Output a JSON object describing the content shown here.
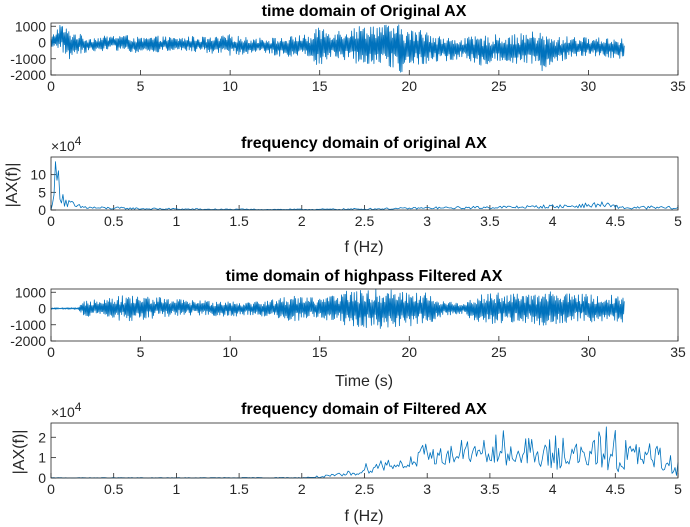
{
  "colors": {
    "line": "#0072BD",
    "axes": "#262626",
    "background": "#ffffff"
  },
  "chart_data": [
    {
      "type": "line",
      "title": "time domain of Original AX",
      "xlabel": "",
      "ylabel": "",
      "xlim": [
        0,
        35
      ],
      "ylim": [
        -2000,
        1200
      ],
      "xticks": [
        0,
        5,
        10,
        15,
        20,
        25,
        30,
        35
      ],
      "xtick_labels": [
        "0",
        "5",
        "10",
        "15",
        "20",
        "25",
        "30",
        "35"
      ],
      "yticks": [
        -2000,
        -1000,
        0,
        1000
      ],
      "ytick_labels": [
        "-2000",
        "-1000",
        "0",
        "1000"
      ],
      "exponent_label": "",
      "envelope": {
        "x": [
          0,
          0.5,
          1,
          1.5,
          2,
          3,
          4,
          5,
          6,
          7,
          8,
          9,
          10,
          11,
          12,
          13,
          14,
          14.5,
          15,
          15.5,
          16,
          17,
          18,
          19,
          19.5,
          20,
          21,
          22,
          23,
          24,
          25,
          26,
          27,
          27.5,
          28,
          29,
          30,
          31,
          32
        ],
        "lo": [
          -500,
          -400,
          -1100,
          -700,
          -600,
          -500,
          -500,
          -700,
          -600,
          -500,
          -600,
          -700,
          -800,
          -700,
          -700,
          -900,
          -800,
          -900,
          -1600,
          -1000,
          -1000,
          -1300,
          -1300,
          -1600,
          -2000,
          -1500,
          -1300,
          -1200,
          -1000,
          -1400,
          -1300,
          -1300,
          -1400,
          -2000,
          -1300,
          -1000,
          -800,
          -900,
          -1100
        ],
        "hi": [
          300,
          1200,
          800,
          600,
          300,
          400,
          500,
          300,
          400,
          300,
          400,
          300,
          500,
          300,
          300,
          300,
          500,
          400,
          1100,
          800,
          800,
          1000,
          1200,
          1100,
          1100,
          800,
          800,
          300,
          300,
          400,
          500,
          500,
          700,
          600,
          300,
          400,
          300,
          300,
          300
        ]
      }
    },
    {
      "type": "line",
      "title": "frequency domain of original AX",
      "xlabel": "f (Hz)",
      "ylabel": "|AX(f)|",
      "xlim": [
        0,
        5
      ],
      "ylim": [
        0,
        150000
      ],
      "xticks": [
        0,
        0.5,
        1,
        1.5,
        2,
        2.5,
        3,
        3.5,
        4,
        4.5,
        5
      ],
      "xtick_labels": [
        "0",
        "0.5",
        "1",
        "1.5",
        "2",
        "2.5",
        "3",
        "3.5",
        "4",
        "4.5",
        "5"
      ],
      "yticks": [
        0,
        50000,
        100000
      ],
      "ytick_labels": [
        "0",
        "5",
        "10"
      ],
      "exponent_label": "×10",
      "exponent_power": "4",
      "envelope": {
        "x": [
          0,
          0.02,
          0.05,
          0.08,
          0.12,
          0.2,
          0.3,
          0.4,
          0.6,
          0.8,
          1.0,
          1.2,
          1.5,
          2.0,
          2.3,
          2.5,
          2.8,
          3.0,
          3.3,
          3.5,
          3.8,
          4.0,
          4.2,
          4.4,
          4.5,
          4.6,
          4.8,
          5.0
        ],
        "lo": [
          0,
          30000,
          50000,
          20000,
          5000,
          3000,
          3000,
          2000,
          2000,
          1000,
          1000,
          500,
          500,
          500,
          500,
          1000,
          2000,
          3000,
          3000,
          4000,
          5000,
          5000,
          6000,
          8000,
          5000,
          2000,
          3000,
          2000
        ],
        "hi": [
          0,
          140000,
          150000,
          90000,
          40000,
          18000,
          12000,
          10000,
          8000,
          6000,
          5000,
          4000,
          3000,
          3000,
          4000,
          5000,
          7000,
          9000,
          10000,
          12000,
          13000,
          16000,
          18000,
          24000,
          15000,
          10000,
          12000,
          10000
        ]
      }
    },
    {
      "type": "line",
      "title": "time domain of highpass Filtered AX",
      "xlabel": "Time (s)",
      "ylabel": "",
      "xlim": [
        0,
        35
      ],
      "ylim": [
        -2000,
        1200
      ],
      "xticks": [
        0,
        5,
        10,
        15,
        20,
        25,
        30,
        35
      ],
      "xtick_labels": [
        "0",
        "5",
        "10",
        "15",
        "20",
        "25",
        "30",
        "35"
      ],
      "yticks": [
        -2000,
        -1000,
        0,
        1000
      ],
      "ytick_labels": [
        "-2000",
        "-1000",
        "0",
        "1000"
      ],
      "exponent_label": "",
      "envelope": {
        "x": [
          0,
          1.5,
          2,
          3,
          4,
          5,
          6,
          7,
          8,
          9,
          10,
          11,
          12,
          13,
          14,
          15,
          16,
          16.5,
          17,
          18,
          19,
          19.5,
          20,
          21,
          22,
          23,
          24,
          25,
          26,
          27,
          28,
          29,
          30,
          31,
          32
        ],
        "lo": [
          -50,
          -50,
          -600,
          -500,
          -800,
          -700,
          -600,
          -500,
          -400,
          -500,
          -500,
          -400,
          -500,
          -700,
          -800,
          -600,
          -900,
          -1200,
          -1100,
          -1300,
          -1200,
          -1300,
          -1100,
          -1000,
          -400,
          -400,
          -900,
          -1000,
          -900,
          -1000,
          -1100,
          -800,
          -900,
          -800,
          -900
        ],
        "hi": [
          50,
          50,
          600,
          700,
          800,
          800,
          700,
          600,
          500,
          500,
          500,
          400,
          500,
          700,
          900,
          600,
          900,
          1200,
          1100,
          1200,
          1200,
          1300,
          1000,
          1000,
          400,
          400,
          900,
          1000,
          900,
          900,
          1100,
          900,
          900,
          800,
          900
        ]
      }
    },
    {
      "type": "line",
      "title": "frequency domain of Filtered AX",
      "xlabel": "f (Hz)",
      "ylabel": "|AX(f)|",
      "xlim": [
        0,
        5
      ],
      "ylim": [
        0,
        27000
      ],
      "xticks": [
        0,
        0.5,
        1,
        1.5,
        2,
        2.5,
        3,
        3.5,
        4,
        4.5,
        5
      ],
      "xtick_labels": [
        "0",
        "0.5",
        "1",
        "1.5",
        "2",
        "2.5",
        "3",
        "3.5",
        "4",
        "4.5",
        "5"
      ],
      "yticks": [
        0,
        10000,
        20000
      ],
      "ytick_labels": [
        "0",
        "1",
        "2"
      ],
      "exponent_label": "×10",
      "exponent_power": "4",
      "envelope": {
        "x": [
          0,
          1.0,
          2.0,
          2.2,
          2.3,
          2.4,
          2.5,
          2.6,
          2.7,
          2.8,
          2.9,
          3.0,
          3.1,
          3.2,
          3.3,
          3.4,
          3.5,
          3.6,
          3.7,
          3.8,
          3.9,
          4.0,
          4.1,
          4.2,
          4.3,
          4.4,
          4.5,
          4.6,
          4.7,
          4.8,
          4.9,
          5.0
        ],
        "lo": [
          0,
          0,
          0,
          200,
          500,
          1000,
          2000,
          3000,
          4000,
          5000,
          4000,
          6000,
          7000,
          6000,
          8000,
          7000,
          6000,
          5000,
          8000,
          7000,
          5000,
          3000,
          6000,
          5000,
          6000,
          5000,
          2000,
          4000,
          5000,
          4000,
          3000,
          1000
        ],
        "hi": [
          200,
          200,
          300,
          1500,
          2500,
          4000,
          7000,
          10000,
          11000,
          9000,
          12000,
          19000,
          15000,
          17000,
          20000,
          18000,
          19000,
          24000,
          14000,
          21000,
          16000,
          22000,
          23000,
          18000,
          15000,
          27000,
          26000,
          20000,
          17000,
          18000,
          14000,
          12000
        ]
      }
    }
  ]
}
